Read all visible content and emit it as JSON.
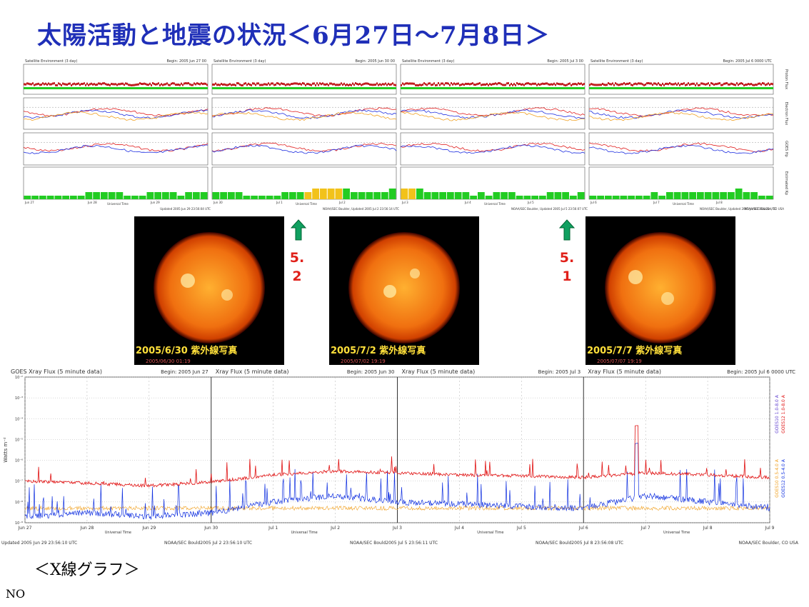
{
  "title": "太陽活動と地震の状況＜6月27日～7月8日＞",
  "top_panels": {
    "headers": [
      {
        "left": "Satellite Environment (3 day)",
        "right": "Begin:  2005 Jun 27 00"
      },
      {
        "left": "Satellite Environment (3 day)",
        "right": "Begin:  2005 Jun 30 00"
      },
      {
        "left": "Satellite Environment (3 day)",
        "right": "Begin:  2005 Jul 3 00"
      },
      {
        "left": "Satellite Environment (3 day)",
        "right": "Begin:  2005 Jul 6 0000 UTC"
      }
    ],
    "side_labels": [
      "Proton Flux",
      "Electron Flux",
      "GOES Hp",
      "Estimated Kp"
    ],
    "footers": [
      "Updated 2005 Jun 29 23:56:04 UTC",
      "NOAA/SEC Boulder, Updated 2005 Jul  2 23:56:14 UTC",
      "NOAA/SEC Boulder, Updated 2005 Jul  5 23:56:07 UTC",
      "NOAA/SEC Boulder, Updated 2005 Jul  8 23:56:22 UTC",
      "NOAA/SEC Boulder, CO USA"
    ],
    "xticks": [
      "Jun 27",
      "Jun 28",
      "Jun 29",
      "Jun 30",
      "Jul 1",
      "Jul 2",
      "Jul 3",
      "Jul 4",
      "Jul 5",
      "Jul 6",
      "Jul 7",
      "Jul 8"
    ],
    "xlabel": "Universal Time",
    "kp_values": [
      1,
      1,
      1,
      1,
      1,
      1,
      1,
      1,
      2,
      2,
      2,
      2,
      2,
      1,
      1,
      1,
      2,
      2,
      2,
      2,
      1,
      2,
      2,
      2,
      2,
      2,
      2,
      2,
      1,
      1,
      1,
      1,
      1,
      2,
      2,
      2,
      2,
      3,
      3,
      3,
      3,
      3,
      2,
      2,
      2,
      2,
      2,
      3,
      3,
      3,
      3,
      2,
      2,
      2,
      2,
      2,
      2,
      1,
      2,
      1,
      2,
      2,
      2,
      1,
      1,
      1,
      1,
      2,
      2,
      2,
      1,
      2,
      1,
      1,
      1,
      1,
      1,
      1,
      1,
      1,
      2,
      1,
      2,
      2,
      2,
      2,
      2,
      2,
      2,
      2,
      2,
      3,
      2,
      2,
      1,
      1
    ],
    "kp_colors": {
      "green": "#22cc22",
      "yellow": "#f2c21a"
    }
  },
  "photos": [
    {
      "caption": "2005/6/30  紫外線写真",
      "sub": "2005/06/30 01:19"
    },
    {
      "caption": "2005/7/2  紫外線写真",
      "sub": "2005/07/02 19:19"
    },
    {
      "caption": "2005/7/7  紫外線写真",
      "sub": "2005/07/07 19:19"
    }
  ],
  "earthquakes": [
    {
      "mag_top": "5.",
      "mag_bottom": "2"
    },
    {
      "mag_top": "5.",
      "mag_bottom": "1"
    }
  ],
  "xray_chart": {
    "headers": [
      {
        "left": "GOES Xray Flux (5 minute data)",
        "right": "Begin:  2005 Jun 27"
      },
      {
        "left": "Xray Flux (5 minute data)",
        "right": "Begin:  2005 Jun 30"
      },
      {
        "left": "Xray Flux (5 minute data)",
        "right": "Begin:  2005 Jul 3"
      },
      {
        "left": "Xray Flux (5 minute data)",
        "right": "Begin:  2005 Jul 6 0000 UTC"
      }
    ],
    "ylabel": "Watts m⁻²",
    "ytick_labels": [
      "10⁻²",
      "10⁻³",
      "10⁻⁴",
      "10⁻⁵",
      "10⁻⁶",
      "10⁻⁷",
      "10⁻⁸",
      "10⁻⁹"
    ],
    "xticks": [
      "Jun 27",
      "Jun 28",
      "Jun 29",
      "Jun 30",
      "Jul 1",
      "Jul 2",
      "Jul 3",
      "Jul 4",
      "Jul 5",
      "Jul 6",
      "Jul 7",
      "Jul 8",
      "Jul 9"
    ],
    "xlabel": "Universal Time",
    "footers": [
      "Updated 2005 Jun 29 23:56:10 UTC",
      "NOAA/SEC Bould2005 Jul  2 23:56:10 UTC",
      "NOAA/SEC Bould2005 Jul  5 23:56:11 UTC",
      "NOAA/SEC Bould2005 Jul  8 23:56:08 UTC",
      "NOAA/SEC Boulder, CO USA"
    ],
    "legend": [
      "GOES10 1.0-8.0 A",
      "GOES12 1.0-8.0 A",
      "GOES10 0.5-4.0 A",
      "GOES12 0.5-4.0 A"
    ],
    "colors": {
      "long": "#e01010",
      "short": "#1030e0",
      "short2": "#f0a020",
      "grid": "#b0b0b0"
    }
  },
  "chart_data": {
    "type": "line",
    "title": "GOES Xray Flux (5 minute data)",
    "xlabel": "Universal Time",
    "ylabel": "Watts m⁻²",
    "yscale": "log",
    "ylim": [
      1e-09,
      0.01
    ],
    "x": [
      "Jun 27",
      "Jun 28",
      "Jun 29",
      "Jun 30",
      "Jul 1",
      "Jul 2",
      "Jul 3",
      "Jul 4",
      "Jul 5",
      "Jul 6",
      "Jul 7",
      "Jul 8",
      "Jul 9"
    ],
    "series": [
      {
        "name": "GOES12 1.0-8.0 A",
        "values": [
          1e-07,
          8e-08,
          6e-08,
          9e-08,
          2e-07,
          3e-07,
          2.5e-07,
          2e-07,
          1.8e-07,
          1.5e-07,
          2.5e-07,
          2e-07,
          1.5e-07
        ]
      },
      {
        "name": "GOES12 0.5-4.0 A",
        "values": [
          2e-09,
          3e-09,
          2e-09,
          3e-09,
          1e-08,
          2e-08,
          1e-08,
          8e-09,
          6e-09,
          5e-09,
          2e-08,
          1e-08,
          5e-09
        ]
      }
    ],
    "grid": true
  },
  "bottom_caption": "＜X線グラフ＞",
  "footer_note": "NO"
}
